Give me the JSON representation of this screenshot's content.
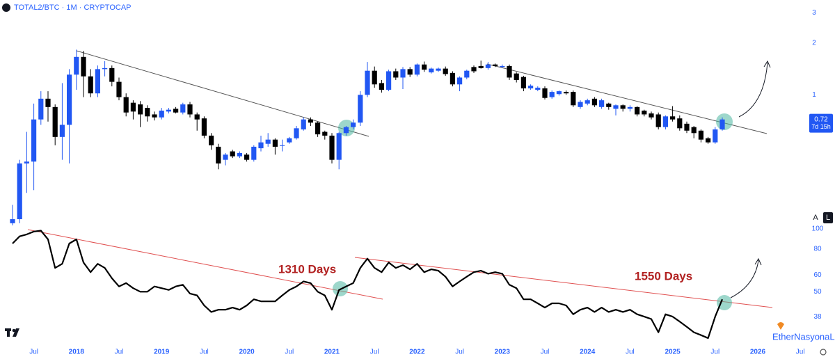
{
  "chart_data": [
    {
      "type": "candlestick",
      "title": "TOTAL2/BTC · 1M · CRYPTOCAP",
      "categories": [
        null,
        null,
        null,
        "Jul",
        null,
        null,
        null,
        null,
        null,
        "2018",
        null,
        null,
        null,
        null,
        null,
        "Jul",
        null,
        null,
        null,
        null,
        null,
        "2019",
        null,
        null,
        null,
        null,
        null,
        "Jul",
        null,
        null,
        null,
        null,
        null,
        "2020",
        null,
        null,
        null,
        null,
        null,
        "Jul",
        null,
        null,
        null,
        null,
        null,
        "2021",
        null,
        null,
        null,
        null,
        null,
        "Jul",
        null,
        null,
        null,
        null,
        null,
        "2022",
        null,
        null,
        null,
        null,
        null,
        "Jul",
        null,
        null,
        null,
        null,
        null,
        "2023",
        null,
        null,
        null,
        null,
        null,
        "Jul",
        null,
        null,
        null,
        null,
        null,
        "2024",
        null,
        null,
        null,
        null,
        null,
        "Jul",
        null,
        null,
        null,
        null,
        null,
        "2025",
        null,
        null,
        null,
        null,
        null,
        "Jul",
        null,
        null,
        null,
        null,
        null,
        "2026",
        null,
        null,
        null,
        null,
        null,
        "Jul"
      ],
      "open": [
        0.18,
        0.19,
        0.4,
        0.41,
        0.72,
        0.95,
        0.85,
        0.57,
        0.67,
        1.31,
        1.66,
        1.28,
        1.02,
        1.41,
        1.43,
        1.19,
        0.97,
        0.9,
        0.88,
        0.84,
        0.77,
        0.74,
        0.8,
        0.83,
        0.79,
        0.88,
        0.77,
        0.73,
        0.58,
        0.5,
        0.42,
        0.47,
        0.44,
        0.45,
        0.42,
        0.49,
        0.52,
        0.55,
        0.51,
        0.53,
        0.56,
        0.63,
        0.72,
        0.69,
        0.61,
        0.58,
        0.42,
        0.6,
        0.65,
        0.69,
        1.0,
        1.38,
        1.17,
        1.07,
        1.37,
        1.26,
        1.41,
        1.31,
        1.5,
        1.35,
        1.38,
        1.42,
        1.34,
        1.15,
        1.26,
        1.45,
        1.47,
        1.43,
        1.5,
        1.45,
        1.47,
        1.33,
        1.27,
        1.09,
        1.07,
        1.09,
        0.97,
        1.01,
        1.04,
        1.04,
        0.85,
        0.89,
        0.95,
        0.85,
        0.89,
        0.83,
        0.87,
        0.83,
        0.85,
        0.81,
        0.78,
        0.77,
        0.65,
        0.75,
        0.73,
        0.68,
        0.65,
        0.62,
        0.56,
        0.53,
        0.63,
        null,
        null,
        null,
        null,
        null,
        null,
        null,
        null,
        null,
        null,
        null
      ],
      "high": [
        0.23,
        0.42,
        0.61,
        0.89,
        1.05,
        1.05,
        0.88,
        1.17,
        1.41,
        1.83,
        1.8,
        1.41,
        1.48,
        1.57,
        1.48,
        1.26,
        1.02,
        0.93,
        0.92,
        0.87,
        0.8,
        0.84,
        0.84,
        0.85,
        0.9,
        0.91,
        0.79,
        0.75,
        0.6,
        0.52,
        0.46,
        0.48,
        0.47,
        0.46,
        0.51,
        0.58,
        0.6,
        0.56,
        0.55,
        0.57,
        0.66,
        0.74,
        0.74,
        0.7,
        0.62,
        0.6,
        0.61,
        0.66,
        0.72,
        1.05,
        1.55,
        1.46,
        1.22,
        1.4,
        1.42,
        1.45,
        1.45,
        1.52,
        1.56,
        1.44,
        1.44,
        1.46,
        1.37,
        1.28,
        1.4,
        1.48,
        1.58,
        1.55,
        1.52,
        1.5,
        1.5,
        1.35,
        1.29,
        1.15,
        1.12,
        1.12,
        1.06,
        1.06,
        1.06,
        1.06,
        0.93,
        0.95,
        0.97,
        0.95,
        0.9,
        0.88,
        0.88,
        0.87,
        0.86,
        0.82,
        0.8,
        0.79,
        0.76,
        0.86,
        0.76,
        0.7,
        0.66,
        0.63,
        0.57,
        0.65,
        0.74,
        null,
        null,
        null,
        null,
        null,
        null,
        null,
        null,
        null,
        null,
        null
      ],
      "low": [
        0.175,
        0.18,
        0.27,
        0.28,
        0.67,
        0.7,
        0.51,
        0.42,
        0.4,
        1.07,
        0.97,
        0.97,
        0.97,
        1.28,
        1.12,
        0.93,
        0.75,
        0.72,
        0.65,
        0.7,
        0.71,
        0.72,
        0.78,
        0.78,
        0.77,
        0.74,
        0.62,
        0.56,
        0.48,
        0.37,
        0.39,
        0.43,
        0.43,
        0.41,
        0.41,
        0.47,
        0.5,
        0.45,
        0.47,
        0.52,
        0.55,
        0.62,
        0.66,
        0.57,
        0.55,
        0.4,
        0.37,
        0.58,
        0.63,
        0.66,
        0.97,
        1.1,
        1.03,
        1.05,
        1.22,
        1.08,
        1.27,
        1.28,
        1.36,
        1.33,
        1.36,
        1.29,
        1.12,
        1.05,
        1.23,
        1.34,
        1.42,
        1.4,
        1.45,
        1.43,
        1.22,
        1.18,
        1.05,
        1.07,
        1.05,
        0.94,
        0.95,
        0.99,
        1.0,
        0.85,
        0.83,
        0.87,
        0.85,
        0.83,
        0.82,
        0.76,
        0.8,
        0.8,
        0.75,
        0.75,
        0.72,
        0.63,
        0.63,
        0.7,
        0.62,
        0.6,
        0.56,
        0.53,
        0.52,
        0.52,
        0.62,
        null,
        null,
        null,
        null,
        null,
        null,
        null,
        null,
        null,
        null,
        null
      ],
      "close": [
        0.19,
        0.4,
        0.41,
        0.72,
        0.95,
        0.85,
        0.57,
        0.67,
        1.31,
        1.66,
        1.28,
        1.02,
        1.41,
        1.43,
        1.19,
        0.97,
        0.79,
        0.8,
        0.77,
        0.75,
        0.74,
        0.81,
        0.82,
        0.79,
        0.88,
        0.77,
        0.72,
        0.58,
        0.51,
        0.4,
        0.45,
        0.44,
        0.46,
        0.42,
        0.5,
        0.53,
        0.55,
        0.5,
        0.51,
        0.56,
        0.64,
        0.72,
        0.69,
        0.59,
        0.58,
        0.42,
        0.6,
        0.65,
        0.69,
        1.0,
        1.38,
        1.15,
        1.07,
        1.37,
        1.26,
        1.41,
        1.31,
        1.5,
        1.4,
        1.42,
        1.42,
        1.32,
        1.15,
        1.26,
        1.38,
        1.37,
        1.43,
        1.5,
        1.47,
        1.47,
        1.26,
        1.22,
        1.09,
        1.13,
        1.1,
        0.96,
        1.04,
        1.05,
        1.02,
        0.87,
        0.91,
        0.93,
        0.87,
        0.93,
        0.85,
        0.87,
        0.83,
        0.85,
        0.77,
        0.77,
        0.74,
        0.65,
        0.75,
        0.72,
        0.64,
        0.62,
        0.6,
        0.55,
        0.53,
        0.63,
        0.72,
        null,
        null,
        null,
        null,
        null,
        null,
        null,
        null,
        null,
        null,
        null
      ],
      "up_color": "#2157f3",
      "down_color": "#000000",
      "log_scale": true,
      "ylim": [
        0.17,
        3.55
      ],
      "yticks": [
        1,
        2,
        3
      ],
      "grid": false,
      "last_value": 0.72,
      "countdown": "7d 15h"
    },
    {
      "type": "line",
      "color": "#000000",
      "values": [
        85,
        92,
        94,
        97,
        98,
        89,
        65,
        68,
        85,
        89,
        69,
        62,
        68,
        65,
        58,
        53,
        55,
        52,
        50,
        50,
        53,
        52,
        51,
        53,
        54,
        49,
        48,
        43,
        40,
        41,
        41,
        42,
        41,
        43,
        46,
        45,
        45,
        45,
        48,
        51,
        53,
        56,
        55,
        50,
        48,
        41,
        51,
        53,
        55,
        65,
        72,
        65,
        62,
        69,
        65,
        67,
        64,
        68,
        62,
        64,
        63,
        59,
        53,
        56,
        59,
        62,
        63,
        61,
        62,
        61,
        54,
        52,
        46,
        46,
        44,
        42,
        44,
        44,
        43,
        39,
        41,
        42,
        40,
        42,
        40,
        41,
        40,
        41,
        39,
        38,
        37,
        32,
        39,
        38,
        36,
        34,
        32,
        31,
        30,
        38,
        46,
        null,
        null,
        null,
        null,
        null,
        null,
        null,
        null,
        null,
        null,
        null
      ],
      "log_scale": true,
      "ylim": [
        28,
        107
      ],
      "yticks": [
        38,
        50,
        60,
        80,
        100
      ],
      "grid": false,
      "annotations": [
        "1310 Days",
        "1550 Days"
      ]
    }
  ],
  "ui": {
    "auto_button": "A",
    "log_button": "L",
    "watermark": "EtherNasyonaL"
  }
}
